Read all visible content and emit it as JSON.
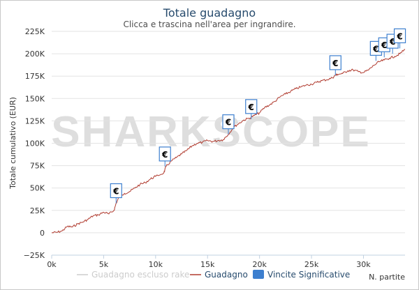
{
  "chart_data": {
    "type": "line",
    "title": "Totale guadagno",
    "subtitle": "Clicca e trascina nell'area per ingrandire.",
    "xlabel": "N. partite",
    "ylabel": "Totale cumulativo (EUR)",
    "watermark": "SHARKSCOPE",
    "xlim": [
      0,
      34000
    ],
    "ylim": [
      -25000,
      225000
    ],
    "x_ticks": [
      "0k",
      "5k",
      "10k",
      "15k",
      "20k",
      "25k",
      "30k"
    ],
    "x_tick_values": [
      0,
      5000,
      10000,
      15000,
      20000,
      25000,
      30000
    ],
    "y_ticks": [
      "225K",
      "200K",
      "175K",
      "150K",
      "125K",
      "100K",
      "75K",
      "50K",
      "25K",
      "0",
      "−25K"
    ],
    "y_tick_values": [
      225000,
      200000,
      175000,
      150000,
      125000,
      100000,
      75000,
      50000,
      25000,
      0,
      -25000
    ],
    "grid": true,
    "legend_position": "bottom",
    "series": [
      {
        "name": "Guadagno escluso rake",
        "color": "#cccccc",
        "hidden": true,
        "x": [],
        "y": []
      },
      {
        "name": "Guadagno",
        "color": "#b03a2e",
        "x": [
          0,
          500,
          1000,
          1500,
          2000,
          2500,
          3000,
          3500,
          4000,
          4500,
          5000,
          5500,
          6000,
          6200,
          6500,
          7000,
          7500,
          8000,
          8500,
          9000,
          9500,
          10000,
          10800,
          11000,
          11500,
          12000,
          12500,
          13000,
          13500,
          14000,
          14500,
          15000,
          15500,
          16000,
          16500,
          17000,
          17500,
          18000,
          18500,
          19000,
          19500,
          20000,
          20500,
          21000,
          21500,
          22000,
          22500,
          23000,
          23500,
          24000,
          24500,
          25000,
          25500,
          26000,
          26500,
          27000,
          27300,
          27500,
          28000,
          28500,
          29000,
          29500,
          30000,
          30500,
          31000,
          31500,
          32000,
          32500,
          33000,
          33500,
          34000
        ],
        "y": [
          0,
          500,
          2000,
          7000,
          6500,
          10000,
          12000,
          15000,
          19000,
          20000,
          23000,
          21000,
          25000,
          33000,
          40000,
          44000,
          46000,
          50000,
          54000,
          56000,
          60000,
          63000,
          67000,
          74000,
          80000,
          84000,
          88000,
          92000,
          97000,
          100000,
          101000,
          103000,
          102000,
          103000,
          104000,
          110000,
          118000,
          122000,
          126000,
          128000,
          131000,
          134000,
          140000,
          143000,
          147000,
          152000,
          155000,
          158000,
          161000,
          163000,
          165000,
          166000,
          168000,
          170000,
          171000,
          173000,
          176000,
          177000,
          178000,
          181000,
          182000,
          180000,
          179000,
          182000,
          187000,
          191000,
          193000,
          195000,
          197000,
          200000,
          205000
        ]
      },
      {
        "name": "Vincite Significative",
        "color": "#3d7fcf",
        "marker_symbol": "€",
        "x": [
          6200,
          10900,
          17000,
          19200,
          27300,
          31200,
          32000,
          32800,
          33500
        ],
        "y": [
          33000,
          74000,
          110000,
          127000,
          176000,
          192000,
          196000,
          200000,
          206000
        ]
      }
    ]
  }
}
